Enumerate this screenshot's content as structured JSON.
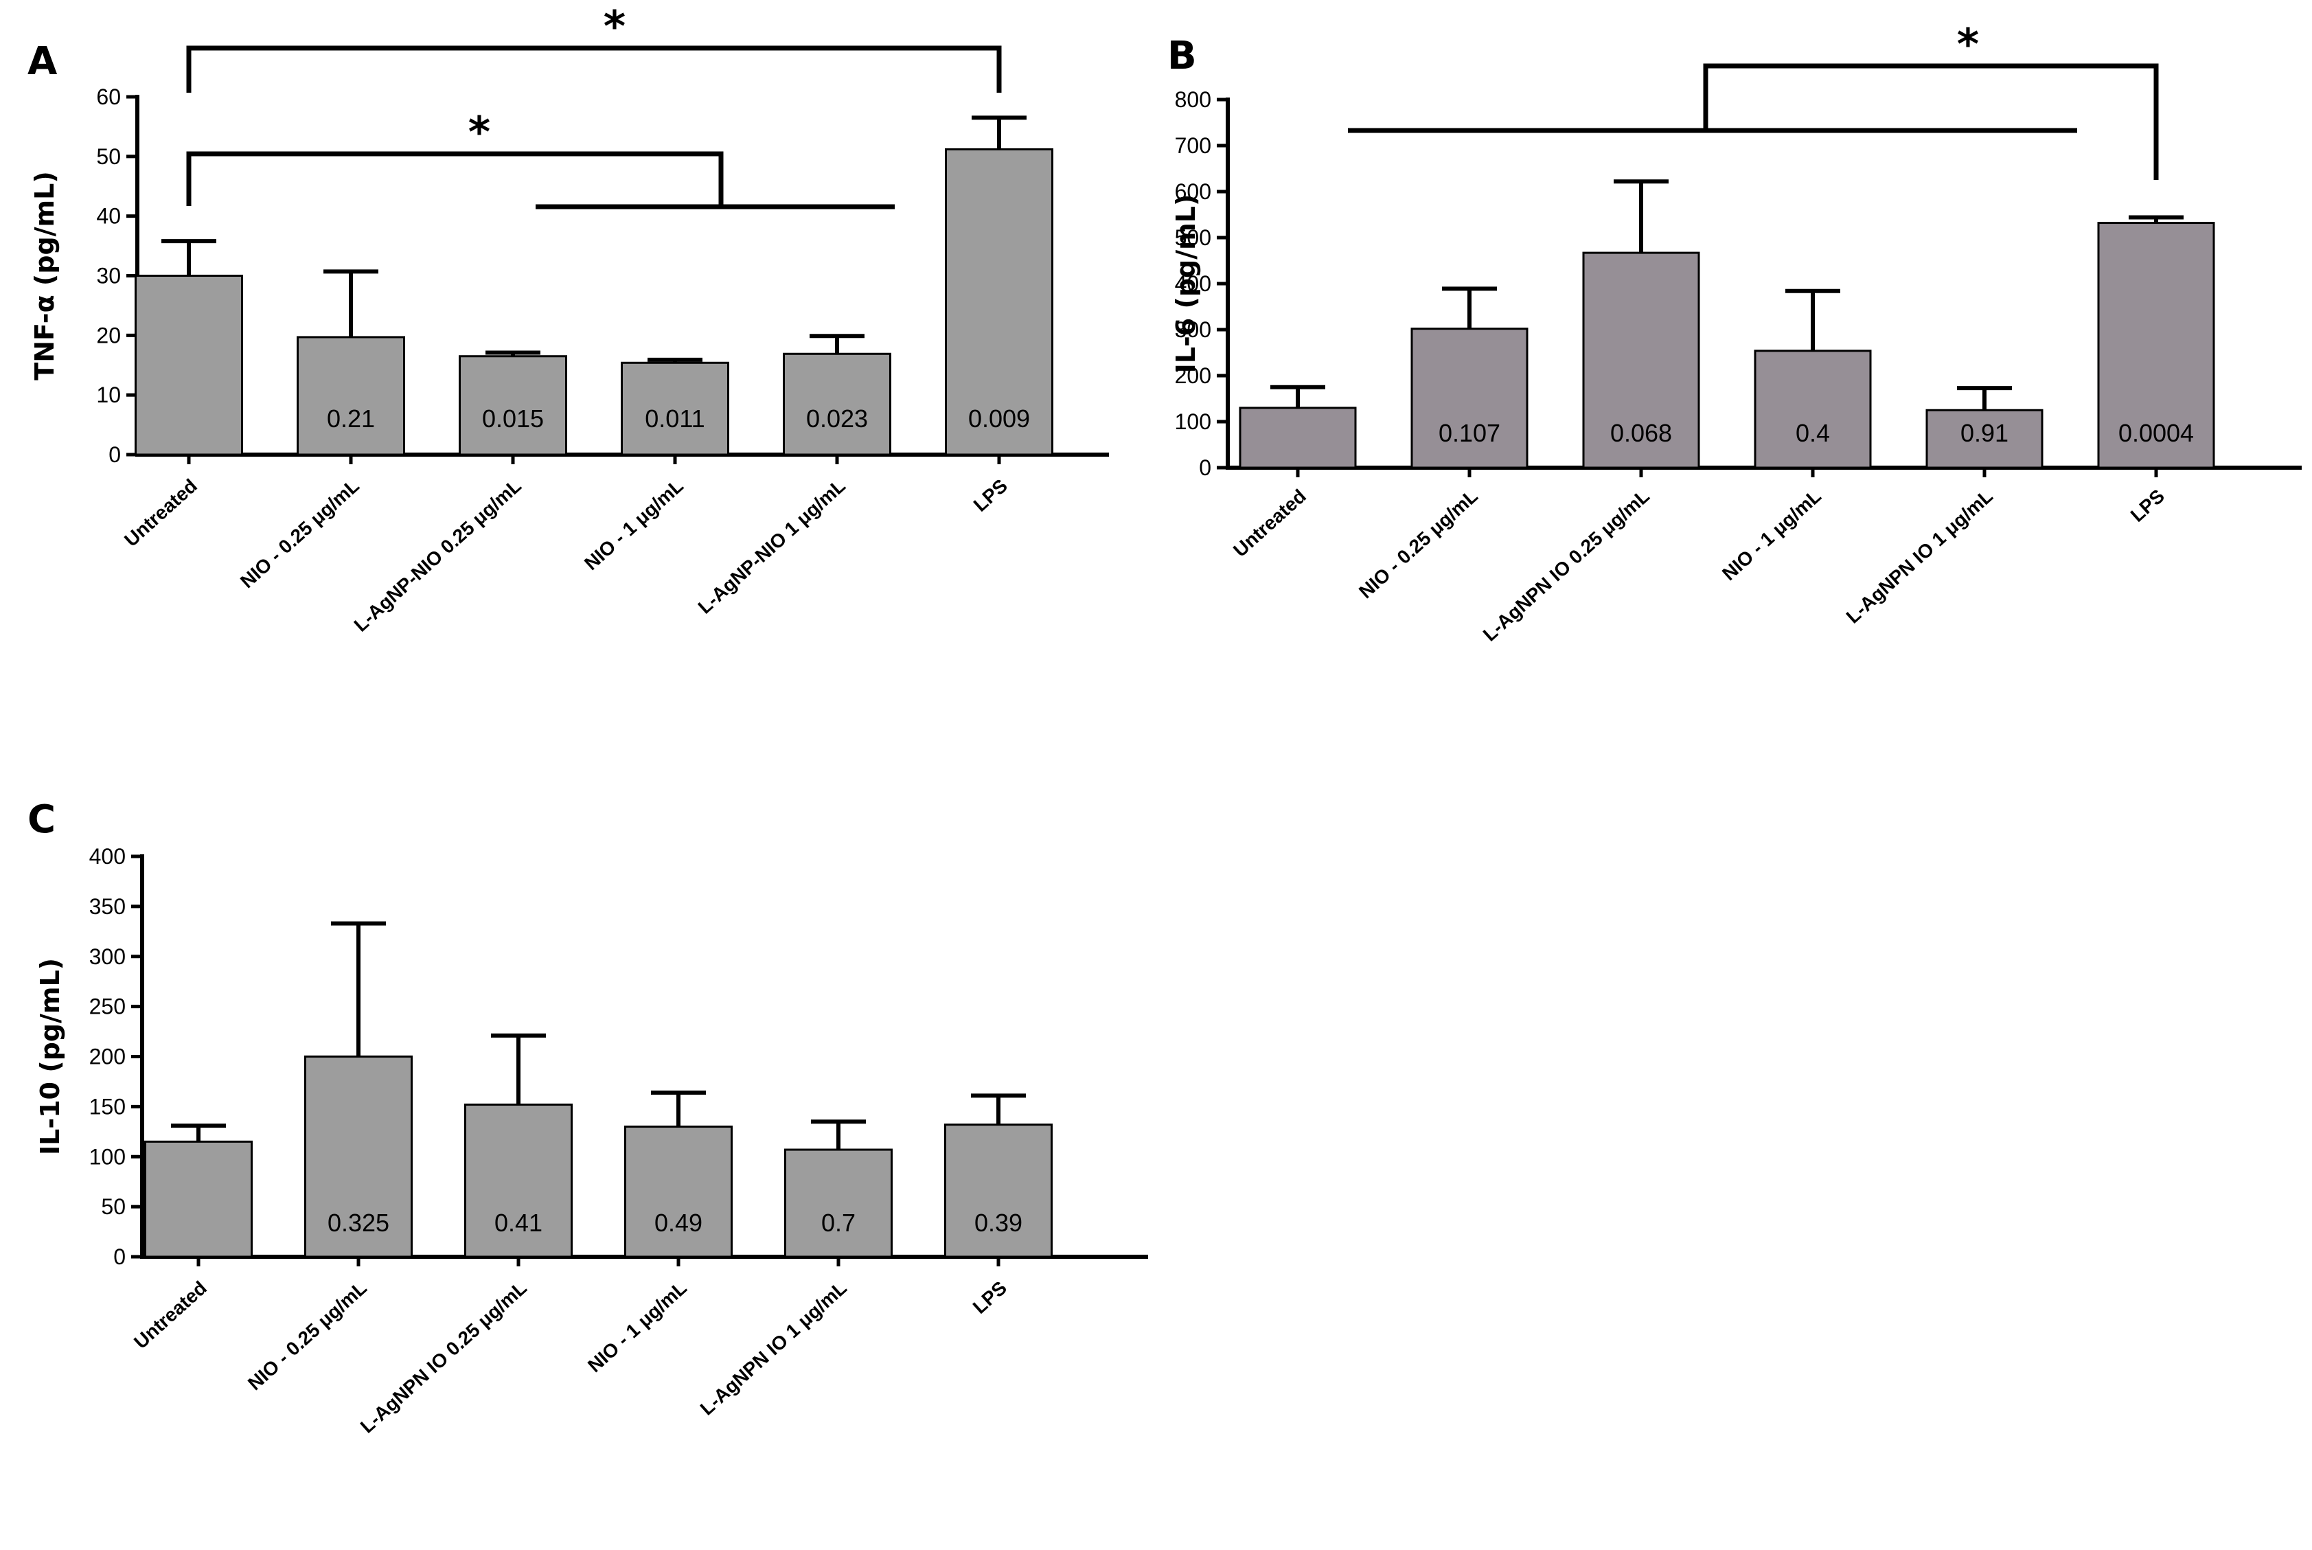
{
  "colors": {
    "bar_gray": "#9d9d9d",
    "bar_mauve": "#968f96",
    "axis": "#000000"
  },
  "chart_data": [
    {
      "panel": "A",
      "type": "bar",
      "ylabel": "TNF-α (pg/mL)",
      "ylim": [
        0,
        60
      ],
      "yticks": [
        0,
        10,
        20,
        30,
        40,
        50,
        60
      ],
      "categories": [
        "Untreated",
        "NIO - 0.25 μg/mL",
        "L-AgNP-NIO 0.25 μg/mL",
        "NIO - 1 μg/mL",
        "L-AgNP-NIO 1 μg/mL",
        "LPS"
      ],
      "values": [
        30,
        19.7,
        16.5,
        15.4,
        16.9,
        51.2
      ],
      "errors": [
        5.8,
        11,
        0.6,
        0.5,
        3,
        5.3
      ],
      "pvalues": [
        "",
        "0.21",
        "0.015",
        "0.011",
        "0.023",
        "0.009"
      ],
      "significance": [
        {
          "label": "*",
          "from": "Untreated",
          "to": "LPS"
        },
        {
          "label": "*",
          "from": "Untreated",
          "to": "L-AgNP-NIO 0.25 μg/mL – L-AgNP-NIO 1 μg/mL"
        }
      ]
    },
    {
      "panel": "B",
      "type": "bar",
      "ylabel": "IL-6 (pg/mL)",
      "ylim": [
        0,
        800
      ],
      "yticks": [
        0,
        100,
        200,
        300,
        400,
        500,
        600,
        700,
        800
      ],
      "categories": [
        "Untreated",
        "NIO - 0.25 μg/mL",
        "L-AgNPN IO 0.25 μg/mL",
        "NIO - 1 μg/mL",
        "L-AgNPN IO 1 μg/mL",
        "LPS"
      ],
      "values": [
        130,
        302,
        467,
        254,
        125,
        532
      ],
      "errors": [
        45,
        87,
        155,
        130,
        48,
        12
      ],
      "pvalues": [
        "",
        "0.107",
        "0.068",
        "0.4",
        "0.91",
        "0.0004"
      ],
      "significance": [
        {
          "label": "*",
          "from": "Untreated – L-AgNPN IO 1 μg/mL",
          "to": "LPS"
        }
      ]
    },
    {
      "panel": "C",
      "type": "bar",
      "ylabel": "IL-10 (pg/mL)",
      "ylim": [
        0,
        400
      ],
      "yticks": [
        0,
        50,
        100,
        150,
        200,
        250,
        300,
        350,
        400
      ],
      "categories": [
        "Untreated",
        "NIO - 0.25 μg/mL",
        "L-AgNPN IO 0.25 μg/mL",
        "NIO - 1 μg/mL",
        "L-AgNPN IO 1 μg/mL",
        "LPS"
      ],
      "values": [
        115,
        200,
        152,
        130,
        107,
        132
      ],
      "errors": [
        16,
        133,
        69,
        34,
        28,
        29
      ],
      "pvalues": [
        "",
        "0.325",
        "0.41",
        "0.49",
        "0.7",
        "0.39"
      ],
      "significance": []
    }
  ]
}
